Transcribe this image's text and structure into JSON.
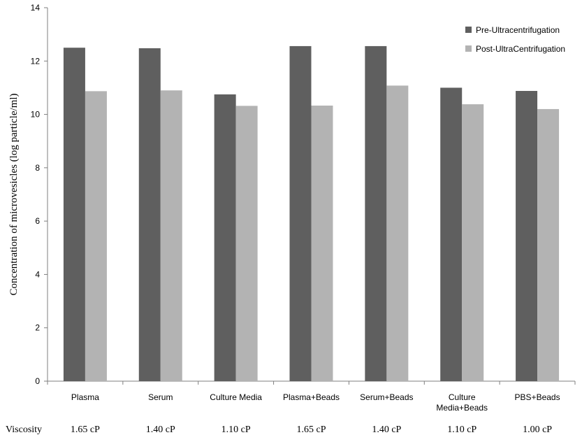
{
  "chart_data": {
    "type": "bar",
    "title": "",
    "ylabel": "Concentration of microvesicles (log particle/ml)",
    "xlabel": "",
    "ylim": [
      0,
      14
    ],
    "yticks": [
      0,
      2,
      4,
      6,
      8,
      10,
      12,
      14
    ],
    "categories": [
      "Plasma",
      "Serum",
      "Culture Media",
      "Plasma+Beads",
      "Serum+Beads",
      "Culture\nMedia+Beads",
      "PBS+Beads"
    ],
    "series": [
      {
        "name": "Pre-Ultracentrifugation",
        "color": "#5f5f5f",
        "values": [
          12.5,
          12.48,
          10.75,
          12.56,
          12.56,
          11.0,
          10.88
        ]
      },
      {
        "name": "Post-UltraCentrifugation",
        "color": "#b3b3b3",
        "values": [
          10.87,
          10.9,
          10.32,
          10.33,
          11.08,
          10.38,
          10.2
        ]
      }
    ],
    "legend_position": "top-right",
    "grid": false,
    "viscosity": {
      "label": "Viscosity",
      "values": [
        "1.65 cP",
        "1.40 cP",
        "1.10 cP",
        "1.65 cP",
        "1.40 cP",
        "1.10 cP",
        "1.00 cP"
      ]
    }
  }
}
